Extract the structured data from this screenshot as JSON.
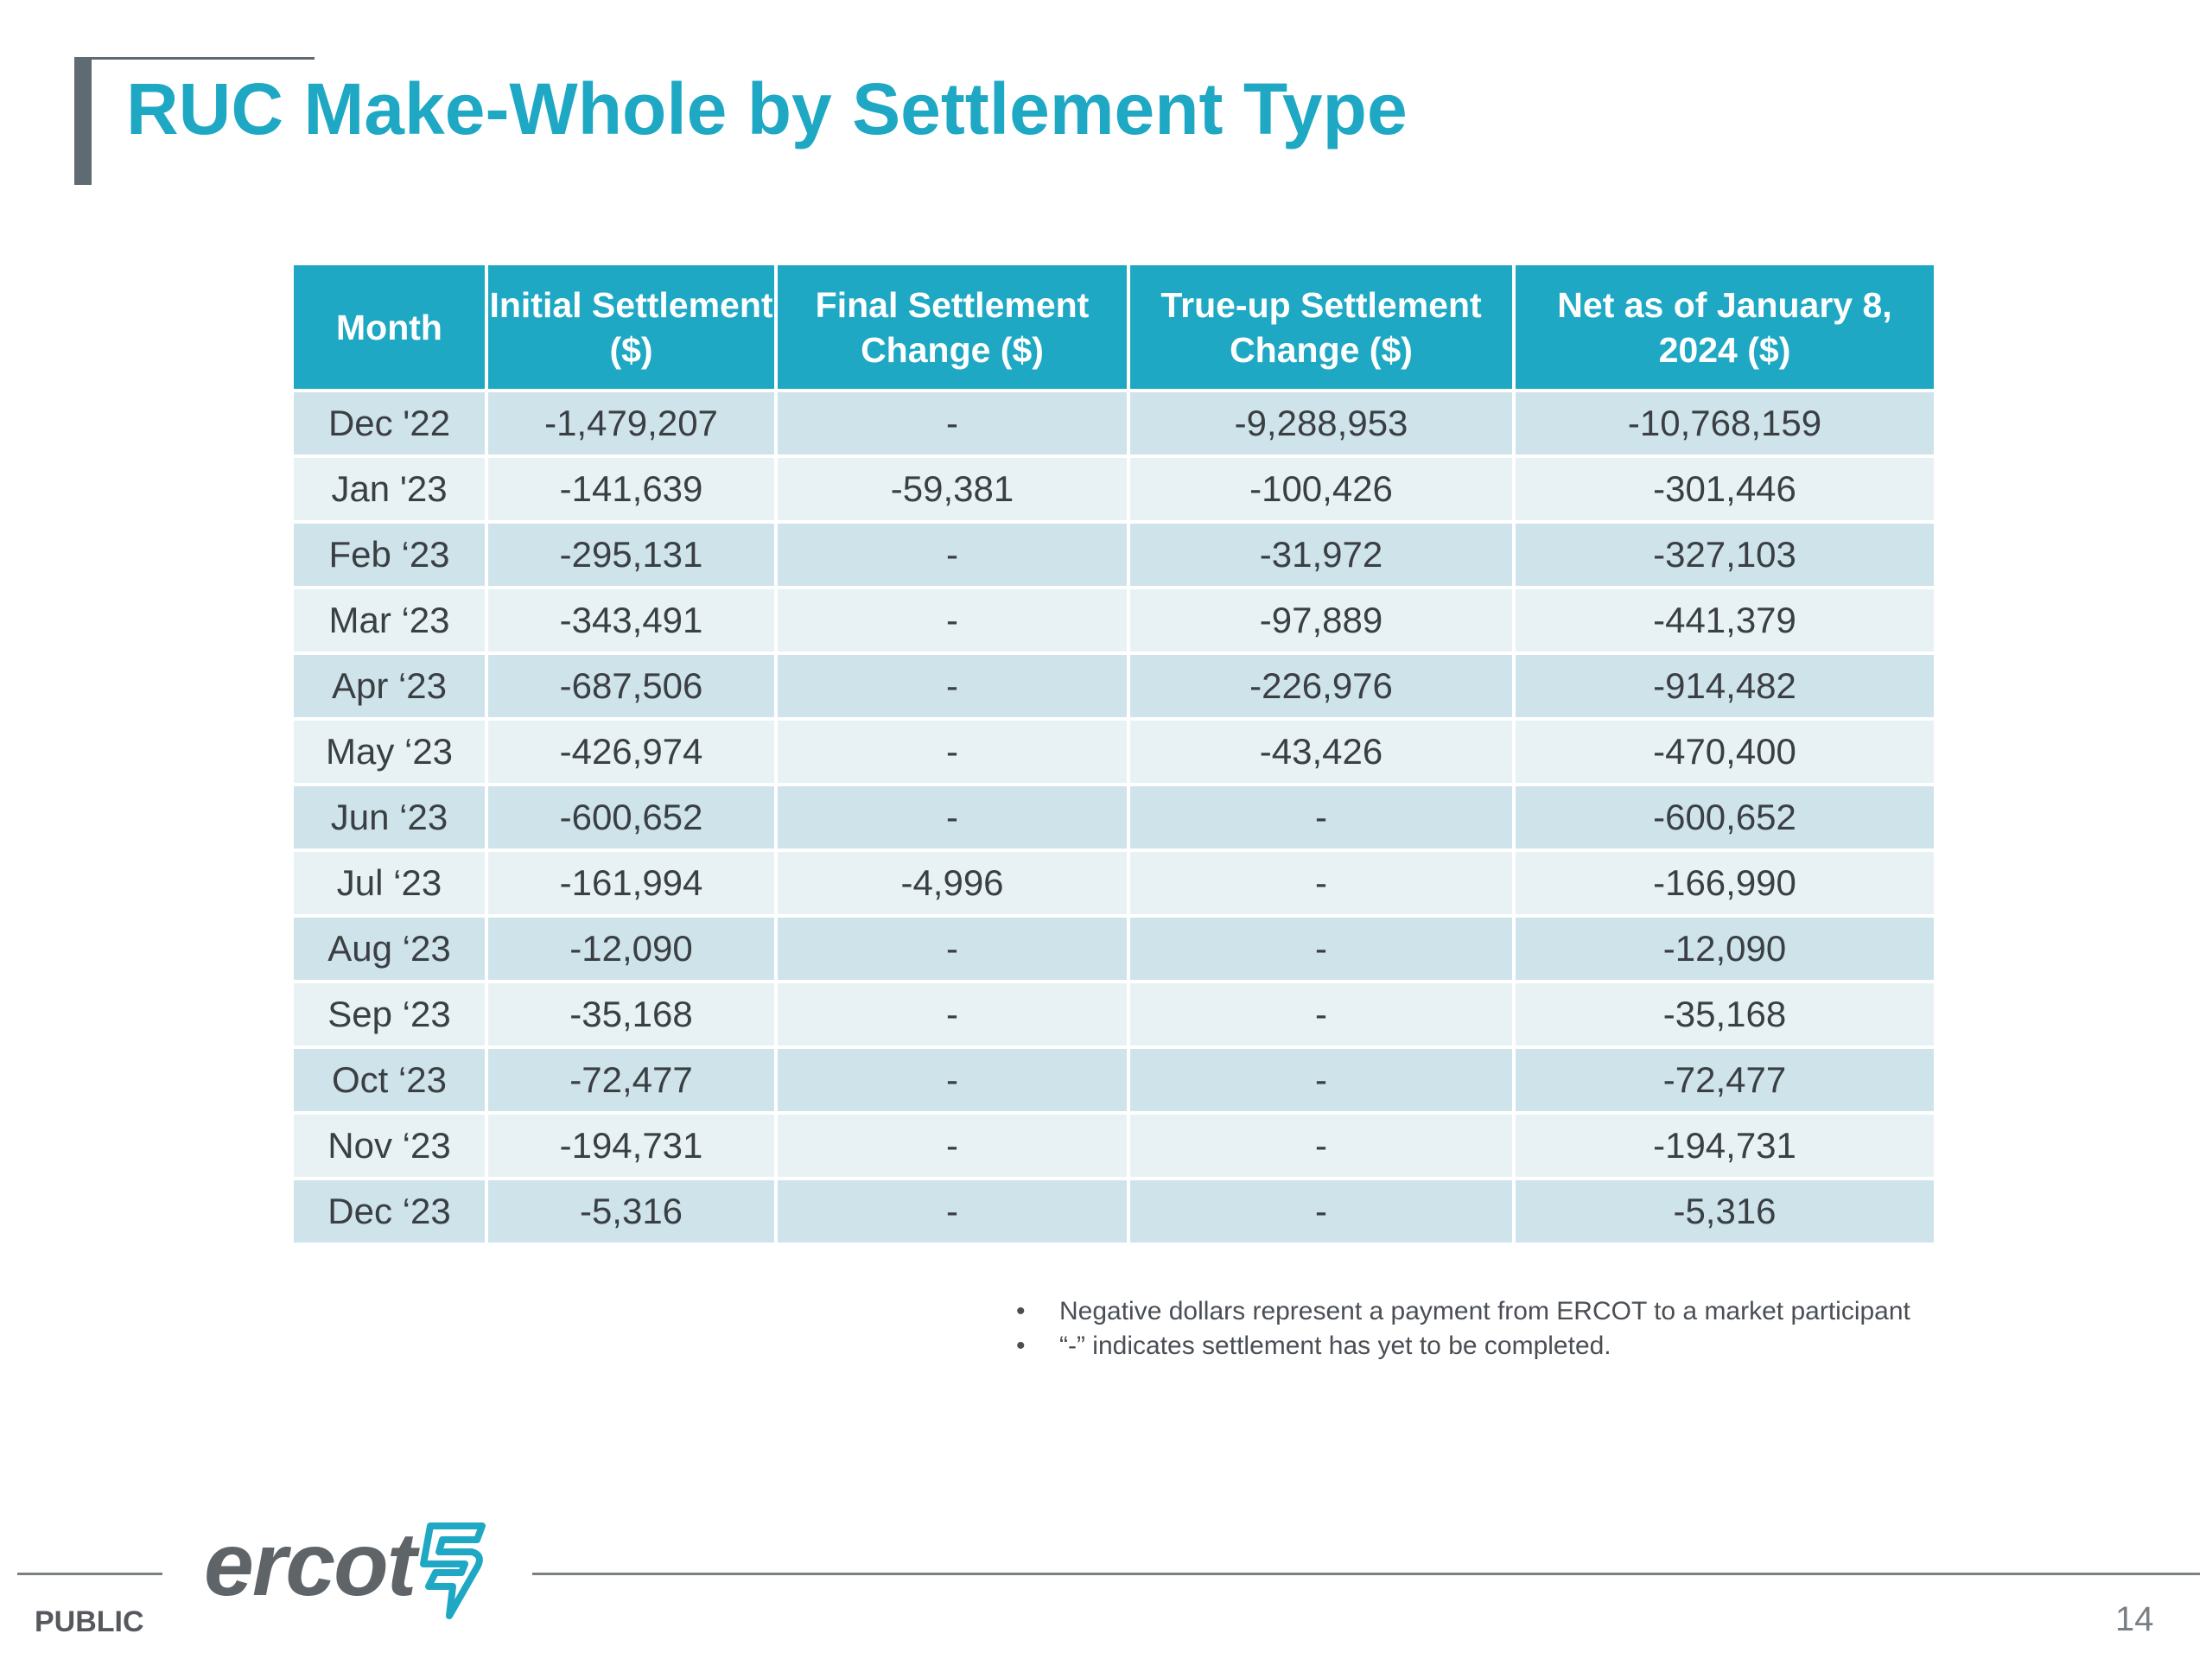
{
  "slide": {
    "title": "RUC Make-Whole by Settlement Type",
    "page_number": "14",
    "classification": "PUBLIC",
    "logo_text": "ercot",
    "accent_color": "#1ea8c4"
  },
  "table": {
    "headers": {
      "month": "Month",
      "initial": "Initial Settlement ($)",
      "final": "Final Settlement Change ($)",
      "trueup": "True-up Settlement Change ($)",
      "net": "Net as of January 8, 2024 ($)"
    },
    "rows": [
      {
        "month": "Dec '22",
        "initial": "-1,479,207",
        "final": "-",
        "trueup": "-9,288,953",
        "net": "-10,768,159"
      },
      {
        "month": "Jan '23",
        "initial": "-141,639",
        "final": "-59,381",
        "trueup": "-100,426",
        "net": "-301,446"
      },
      {
        "month": "Feb ‘23",
        "initial": "-295,131",
        "final": "-",
        "trueup": "-31,972",
        "net": "-327,103"
      },
      {
        "month": "Mar ‘23",
        "initial": "-343,491",
        "final": "-",
        "trueup": "-97,889",
        "net": "-441,379"
      },
      {
        "month": "Apr ‘23",
        "initial": "-687,506",
        "final": "-",
        "trueup": "-226,976",
        "net": "-914,482"
      },
      {
        "month": "May ‘23",
        "initial": "-426,974",
        "final": "-",
        "trueup": "-43,426",
        "net": "-470,400"
      },
      {
        "month": "Jun ‘23",
        "initial": "-600,652",
        "final": "-",
        "trueup": "-",
        "net": "-600,652"
      },
      {
        "month": "Jul ‘23",
        "initial": "-161,994",
        "final": "-4,996",
        "trueup": "-",
        "net": "-166,990"
      },
      {
        "month": "Aug ‘23",
        "initial": "-12,090",
        "final": "-",
        "trueup": "-",
        "net": "-12,090"
      },
      {
        "month": "Sep ‘23",
        "initial": "-35,168",
        "final": "-",
        "trueup": "-",
        "net": "-35,168"
      },
      {
        "month": "Oct ‘23",
        "initial": "-72,477",
        "final": "-",
        "trueup": "-",
        "net": "-72,477"
      },
      {
        "month": "Nov ‘23",
        "initial": "-194,731",
        "final": "-",
        "trueup": "-",
        "net": "-194,731"
      },
      {
        "month": "Dec ‘23",
        "initial": "-5,316",
        "final": "-",
        "trueup": "-",
        "net": "-5,316"
      }
    ]
  },
  "notes": [
    "Negative dollars represent a payment from ERCOT to a market participant",
    "“-” indicates settlement has yet to be completed."
  ]
}
